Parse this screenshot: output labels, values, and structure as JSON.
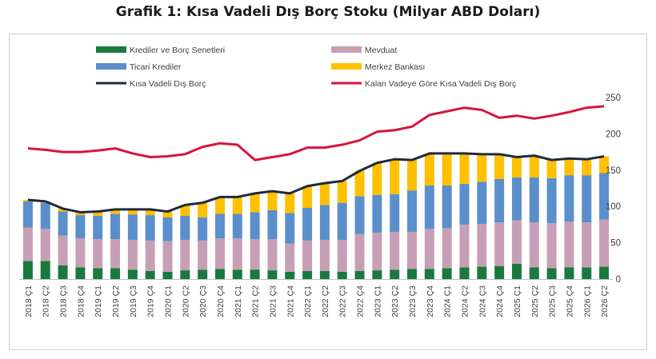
{
  "title": "Grafik 1: Kısa Vadeli Dış Borç Stoku (Milyar ABD Doları)",
  "colors": {
    "krediler": "#1a7a3c",
    "mevduat": "#c79fb5",
    "ticari": "#5b8fcc",
    "merkez": "#ffc000",
    "kvdb": "#1f2a3c",
    "kalan": "#d8143c",
    "grid": "#d9d9d9",
    "text": "#404040"
  },
  "legend": {
    "krediler": "Krediler ve Borç Senetleri",
    "mevduat": "Mevduat",
    "ticari": "Ticari Krediler",
    "merkez": "Merkez Bankası",
    "kvdb": "Kısa Vadeli Dış Borç",
    "kalan": "Kalan Vadeye Göre Kısa Vadeli Dış Borç"
  },
  "chart_data": {
    "type": "bar",
    "stacked": true,
    "title": "Grafik 1: Kısa Vadeli Dış Borç Stoku (Milyar ABD Doları)",
    "ylim": [
      0,
      250
    ],
    "yticks": [
      0,
      50,
      100,
      150,
      200,
      250
    ],
    "y_axis_side": "right",
    "grid": false,
    "legend_position": "top",
    "categories": [
      "2018 Ç1",
      "2018 Ç2",
      "2018 Ç3",
      "2018 Ç4",
      "2019 Ç1",
      "2019 Ç2",
      "2019 Ç3",
      "2019 Ç4",
      "2020 Ç1",
      "2020 Ç2",
      "2020 Ç3",
      "2020 Ç4",
      "2021 Ç1",
      "2021 Ç2",
      "2021 Ç3",
      "2021 Ç4",
      "2022 Ç1",
      "2022 Ç2",
      "2022 Ç3",
      "2022 Ç4",
      "2023 Ç1",
      "2023 Ç2",
      "2023 Ç3",
      "2023 Ç4",
      "2024 Ç1",
      "2024 Ç2",
      "2024 Ç3",
      "2024 Ç4",
      "2025 Ç1",
      "2025 Ç2",
      "2025 Ç3",
      "2025 Ç4",
      "2026 Ç1",
      "2026 Ç2"
    ],
    "series": [
      {
        "name": "Krediler ve Borç Senetleri",
        "kind": "bar",
        "values": [
          25,
          25,
          19,
          16,
          15,
          15,
          13,
          11,
          10,
          12,
          13,
          14,
          13,
          13,
          12,
          10,
          11,
          11,
          10,
          11,
          12,
          13,
          14,
          14,
          15,
          16,
          17,
          18,
          21,
          16,
          15,
          16,
          16,
          17
        ]
      },
      {
        "name": "Mevduat",
        "kind": "bar",
        "values": [
          46,
          44,
          41,
          40,
          40,
          40,
          41,
          42,
          42,
          42,
          40,
          42,
          43,
          42,
          43,
          39,
          42,
          43,
          44,
          51,
          52,
          52,
          51,
          55,
          55,
          59,
          59,
          60,
          60,
          62,
          62,
          63,
          62,
          65
        ]
      },
      {
        "name": "Ticari Krediler",
        "kind": "bar",
        "values": [
          36,
          36,
          33,
          32,
          32,
          35,
          35,
          35,
          33,
          33,
          32,
          34,
          34,
          37,
          40,
          42,
          45,
          48,
          51,
          52,
          52,
          52,
          57,
          60,
          59,
          56,
          58,
          60,
          59,
          62,
          62,
          64,
          65,
          64
        ]
      },
      {
        "name": "Merkez Bankası",
        "kind": "bar",
        "values": [
          2,
          2,
          4,
          4,
          6,
          6,
          7,
          8,
          8,
          15,
          20,
          23,
          23,
          26,
          26,
          27,
          30,
          30,
          30,
          35,
          44,
          48,
          42,
          44,
          44,
          42,
          38,
          34,
          28,
          30,
          25,
          23,
          22,
          23
        ]
      },
      {
        "name": "Kısa Vadeli Dış Borç",
        "kind": "line",
        "values": [
          109,
          107,
          97,
          92,
          93,
          96,
          96,
          96,
          93,
          102,
          105,
          113,
          113,
          118,
          121,
          118,
          128,
          132,
          135,
          149,
          160,
          165,
          164,
          173,
          173,
          173,
          172,
          172,
          168,
          170,
          164,
          166,
          165,
          169
        ]
      },
      {
        "name": "Kalan Vadeye Göre Kısa Vadeli Dış Borç",
        "kind": "line",
        "values": [
          180,
          178,
          175,
          175,
          177,
          180,
          173,
          168,
          169,
          172,
          182,
          187,
          185,
          164,
          168,
          172,
          181,
          181,
          185,
          191,
          203,
          205,
          210,
          226,
          231,
          236,
          233,
          222,
          225,
          221,
          225,
          230,
          236,
          238
        ]
      }
    ]
  }
}
